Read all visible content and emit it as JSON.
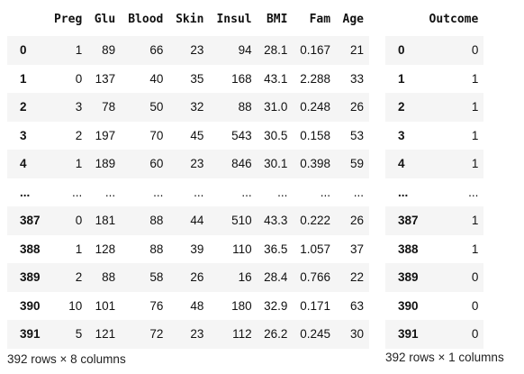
{
  "left_df": {
    "columns": [
      "",
      "Preg",
      "Glu",
      "Blood",
      "Skin",
      "Insul",
      "BMI",
      "Fam",
      "Age"
    ],
    "rows": [
      [
        "0",
        "1",
        "89",
        "66",
        "23",
        "94",
        "28.1",
        "0.167",
        "21"
      ],
      [
        "1",
        "0",
        "137",
        "40",
        "35",
        "168",
        "43.1",
        "2.288",
        "33"
      ],
      [
        "2",
        "3",
        "78",
        "50",
        "32",
        "88",
        "31.0",
        "0.248",
        "26"
      ],
      [
        "3",
        "2",
        "197",
        "70",
        "45",
        "543",
        "30.5",
        "0.158",
        "53"
      ],
      [
        "4",
        "1",
        "189",
        "60",
        "23",
        "846",
        "30.1",
        "0.398",
        "59"
      ],
      [
        "...",
        "...",
        "...",
        "...",
        "...",
        "...",
        "...",
        "...",
        "..."
      ],
      [
        "387",
        "0",
        "181",
        "88",
        "44",
        "510",
        "43.3",
        "0.222",
        "26"
      ],
      [
        "388",
        "1",
        "128",
        "88",
        "39",
        "110",
        "36.5",
        "1.057",
        "37"
      ],
      [
        "389",
        "2",
        "88",
        "58",
        "26",
        "16",
        "28.4",
        "0.766",
        "22"
      ],
      [
        "390",
        "10",
        "101",
        "76",
        "48",
        "180",
        "32.9",
        "0.171",
        "63"
      ],
      [
        "391",
        "5",
        "121",
        "72",
        "23",
        "112",
        "26.2",
        "0.245",
        "30"
      ]
    ],
    "footer": "392 rows × 8 columns"
  },
  "right_df": {
    "columns": [
      "",
      "Outcome"
    ],
    "rows": [
      [
        "0",
        "0"
      ],
      [
        "1",
        "1"
      ],
      [
        "2",
        "1"
      ],
      [
        "3",
        "1"
      ],
      [
        "4",
        "1"
      ],
      [
        "...",
        "..."
      ],
      [
        "387",
        "1"
      ],
      [
        "388",
        "1"
      ],
      [
        "389",
        "0"
      ],
      [
        "390",
        "0"
      ],
      [
        "391",
        "0"
      ]
    ],
    "footer": "392 rows × 1 columns"
  },
  "colors": {
    "stripe": "#f5f5f5",
    "text": "#111111"
  }
}
